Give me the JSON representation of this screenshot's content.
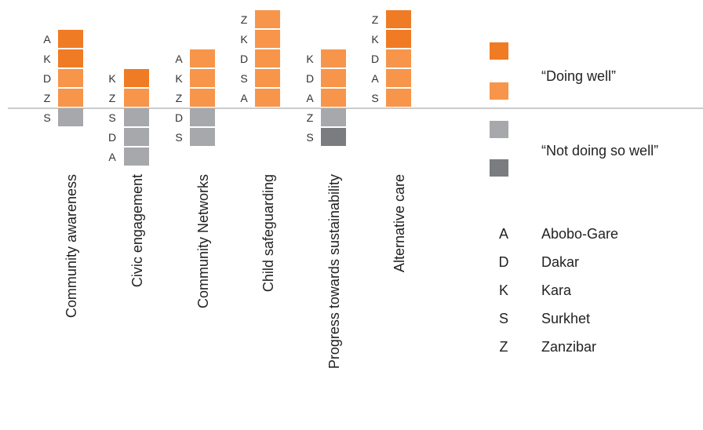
{
  "chart_data": {
    "type": "table",
    "categories": [
      {
        "label": "Community awareness",
        "doing_well": [
          {
            "site": "A",
            "level": "strong"
          },
          {
            "site": "K",
            "level": "strong"
          },
          {
            "site": "D",
            "level": "light"
          },
          {
            "site": "Z",
            "level": "light"
          }
        ],
        "not_doing_so_well": [
          {
            "site": "S",
            "level": "light"
          }
        ]
      },
      {
        "label": "Civic engagement",
        "doing_well": [
          {
            "site": "K",
            "level": "strong"
          },
          {
            "site": "Z",
            "level": "light"
          }
        ],
        "not_doing_so_well": [
          {
            "site": "S",
            "level": "light"
          },
          {
            "site": "D",
            "level": "light"
          },
          {
            "site": "A",
            "level": "light"
          }
        ]
      },
      {
        "label": "Community Networks",
        "doing_well": [
          {
            "site": "A",
            "level": "light"
          },
          {
            "site": "K",
            "level": "light"
          },
          {
            "site": "Z",
            "level": "light"
          }
        ],
        "not_doing_so_well": [
          {
            "site": "D",
            "level": "light"
          },
          {
            "site": "S",
            "level": "light"
          }
        ]
      },
      {
        "label": "Child safeguarding",
        "doing_well": [
          {
            "site": "Z",
            "level": "light"
          },
          {
            "site": "K",
            "level": "light"
          },
          {
            "site": "D",
            "level": "light"
          },
          {
            "site": "S",
            "level": "light"
          },
          {
            "site": "A",
            "level": "light"
          }
        ],
        "not_doing_so_well": []
      },
      {
        "label": "Progress towards sustainability",
        "doing_well": [
          {
            "site": "K",
            "level": "light"
          },
          {
            "site": "D",
            "level": "light"
          },
          {
            "site": "A",
            "level": "light"
          }
        ],
        "not_doing_so_well": [
          {
            "site": "Z",
            "level": "light"
          },
          {
            "site": "S",
            "level": "strong"
          }
        ]
      },
      {
        "label": "Alternative care",
        "doing_well": [
          {
            "site": "Z",
            "level": "strong"
          },
          {
            "site": "K",
            "level": "strong"
          },
          {
            "site": "D",
            "level": "light"
          },
          {
            "site": "A",
            "level": "light"
          },
          {
            "site": "S",
            "level": "light"
          }
        ],
        "not_doing_so_well": []
      }
    ],
    "legend": {
      "doing_well_label": "“Doing well”",
      "not_doing_so_well_label": "“Not doing so well”",
      "keys": [
        {
          "code": "A",
          "name": "Abobo-Gare"
        },
        {
          "code": "D",
          "name": "Dakar"
        },
        {
          "code": "K",
          "name": "Kara"
        },
        {
          "code": "S",
          "name": "Surkhet"
        },
        {
          "code": "Z",
          "name": "Zanzibar"
        }
      ],
      "placement": "right"
    },
    "colors": {
      "doing_well_strong": "#f07b25",
      "doing_well_light": "#f7954a",
      "not_doing_light": "#a7a8ab",
      "not_doing_strong": "#7b7c80",
      "baseline": "#9a9a9a"
    }
  }
}
